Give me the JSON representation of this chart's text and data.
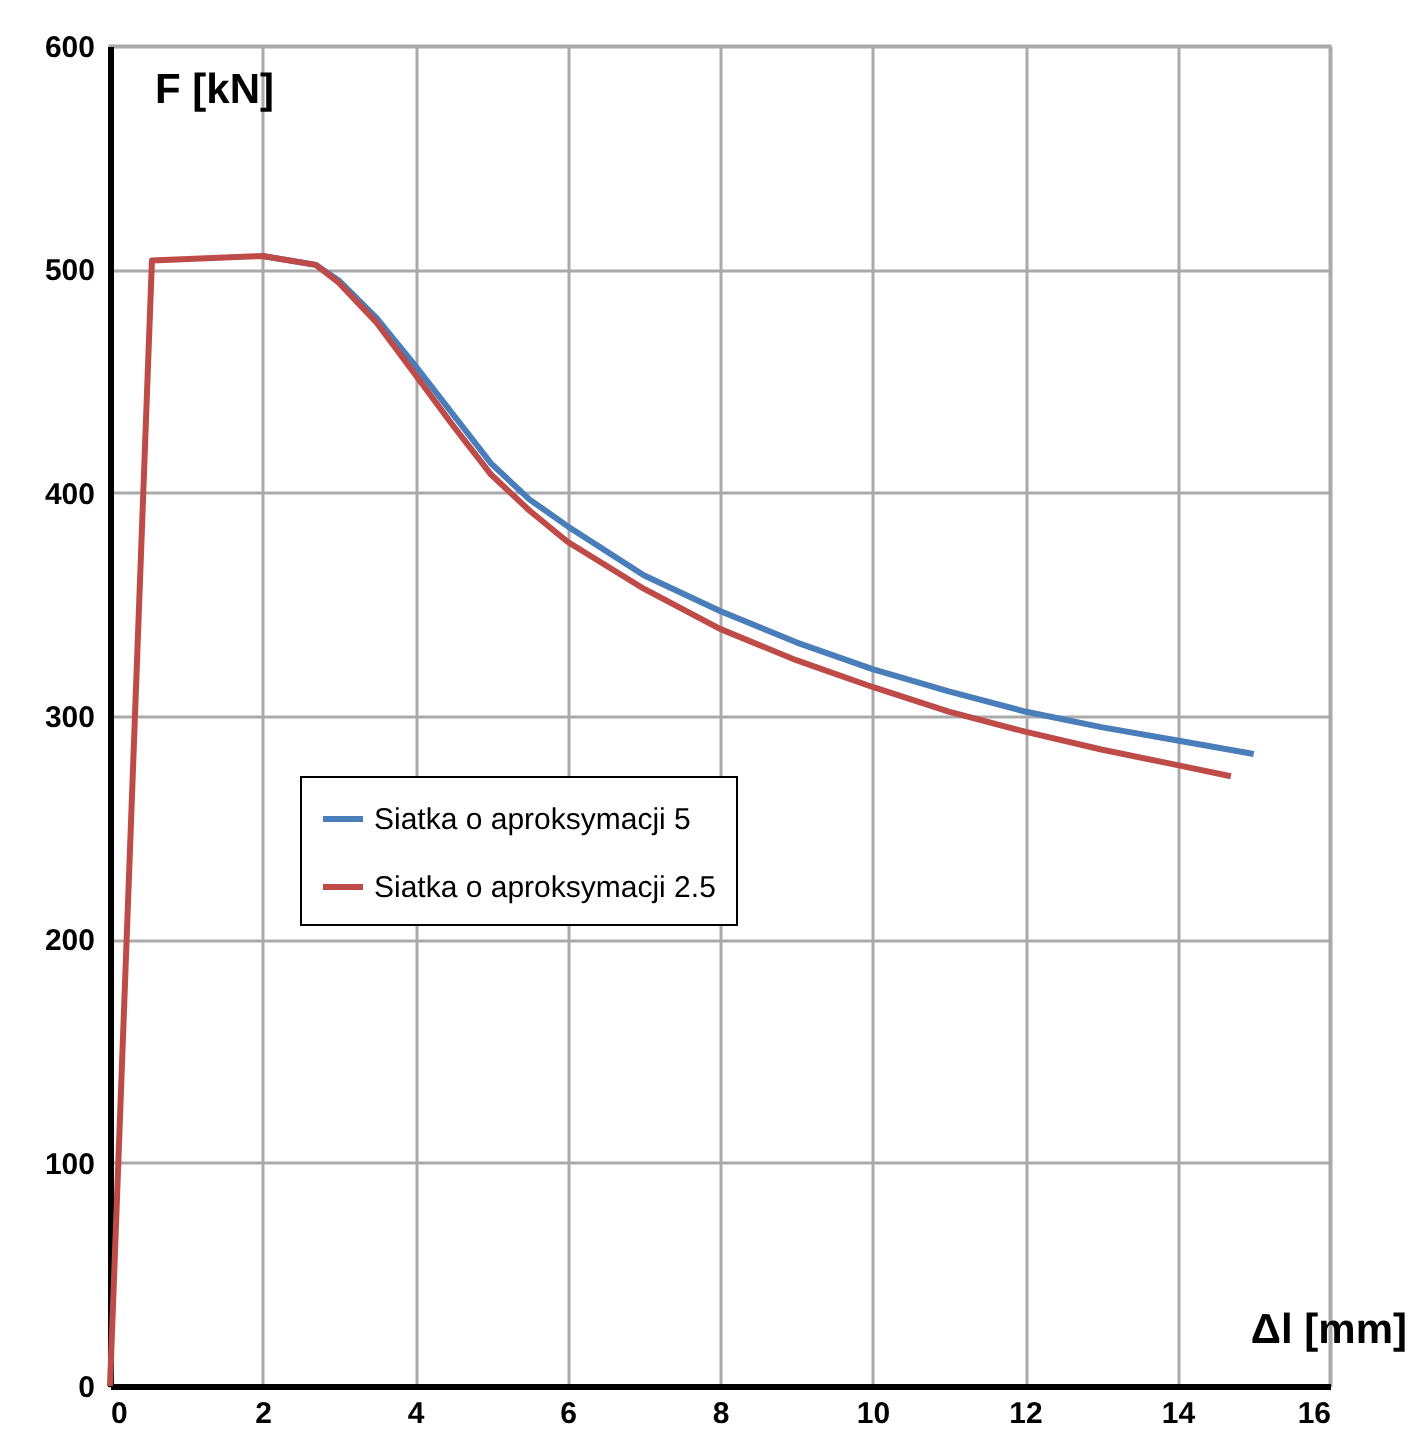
{
  "chart_data": {
    "type": "line",
    "xlabel": "Δl [mm]",
    "ylabel": "F [kN]",
    "xlim": [
      0,
      16
    ],
    "ylim": [
      0,
      600
    ],
    "xticks": [
      0,
      2,
      4,
      6,
      8,
      10,
      12,
      14,
      16
    ],
    "yticks": [
      0,
      100,
      200,
      300,
      400,
      500,
      600
    ],
    "grid": true,
    "legend": "left",
    "marker": "none",
    "line_style": "solid",
    "series": [
      {
        "name": "Siatka o aproksymacji 5",
        "color": "#4a7ebb",
        "x": [
          2,
          2.7,
          3,
          3.5,
          4,
          4.5,
          5,
          5.5,
          6,
          7,
          8,
          9,
          10,
          11,
          12,
          13,
          14,
          15
        ],
        "values": [
          506,
          502,
          495,
          478,
          457,
          435,
          413,
          397,
          385,
          363,
          347,
          333,
          321,
          311,
          302,
          295,
          289,
          283
        ]
      },
      {
        "name": "Siatka o aproksymacji 2.5",
        "color": "#be4b48",
        "x": [
          0,
          0.55,
          2,
          2.7,
          3,
          3.5,
          4,
          4.5,
          5,
          5.5,
          6,
          7,
          8,
          9,
          10,
          11,
          12,
          13,
          14,
          14.7
        ],
        "values": [
          0,
          504,
          506,
          502,
          494,
          476,
          453,
          430,
          408,
          392,
          378,
          357,
          339,
          325,
          313,
          302,
          293,
          285,
          278,
          273
        ]
      }
    ]
  }
}
